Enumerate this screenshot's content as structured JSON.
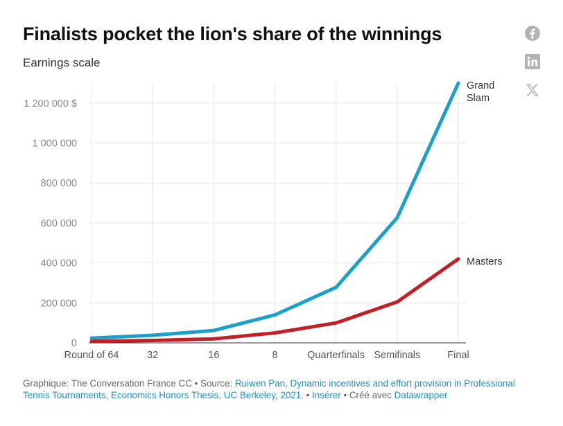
{
  "header": {
    "title": "Finalists pocket the lion's share of the winnings",
    "subtitle": "Earnings scale"
  },
  "share": {
    "icons": [
      "facebook-icon",
      "linkedin-icon",
      "x-icon"
    ],
    "color": "#b3b3b3"
  },
  "chart_data": {
    "type": "line",
    "categories": [
      "Round of 64",
      "32",
      "16",
      "8",
      "Quarterfinals",
      "Semifinals",
      "Final"
    ],
    "series": [
      {
        "name": "Grand Slam",
        "label_lines": [
          "Grand",
          "Slam"
        ],
        "color": "#1ba0c9",
        "values": [
          24000,
          38000,
          62000,
          140000,
          278000,
          626000,
          1300000
        ]
      },
      {
        "name": "Masters",
        "label_lines": [
          "Masters"
        ],
        "color": "#c22026",
        "values": [
          8000,
          12000,
          20000,
          50000,
          100000,
          205000,
          420000
        ]
      }
    ],
    "yticks": [
      {
        "value": 0,
        "label": "0"
      },
      {
        "value": 200000,
        "label": "200 000"
      },
      {
        "value": 400000,
        "label": "400 000"
      },
      {
        "value": 600000,
        "label": "600 000"
      },
      {
        "value": 800000,
        "label": "800 000"
      },
      {
        "value": 1000000,
        "label": "1 000 000"
      },
      {
        "value": 1200000,
        "label": "1 200 000 $"
      }
    ],
    "ylim": [
      0,
      1300000
    ],
    "grid": true
  },
  "footer": {
    "credit": "Graphique: The Conversation France CC",
    "source_label": " • Source: ",
    "source_link": "Ruiwen Pan, Dynamic incentives and effort provision in Professional Tennis Tournaments, Economics Honors Thesis, UC Berkeley, 2021.",
    "sep1": " • ",
    "insert_link": "Insérer",
    "sep2": " • Créé avec ",
    "tool_link": "Datawrapper"
  }
}
